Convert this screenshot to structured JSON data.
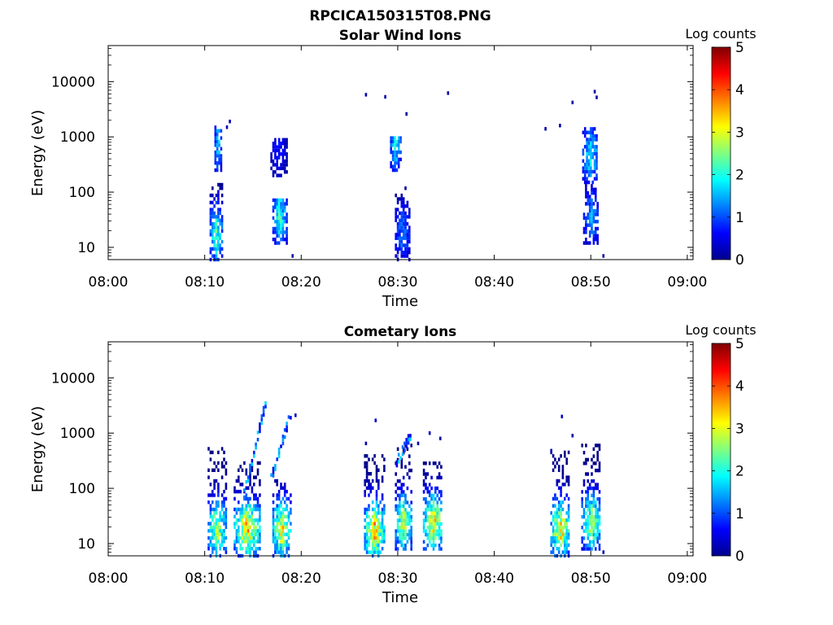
{
  "figure_title": "RPCICA150315T08.PNG",
  "chart_data": [
    {
      "type": "heatmap",
      "title": "Solar Wind Ions",
      "xlabel": "Time",
      "ylabel": "Energy (eV)",
      "x_ticks": [
        "08:00",
        "08:10",
        "08:20",
        "08:30",
        "08:40",
        "08:50",
        "09:00"
      ],
      "xlim_minutes": [
        0,
        60.6
      ],
      "y_ticks": [
        10,
        100,
        1000,
        10000
      ],
      "y_tick_labels": [
        "10",
        "100",
        "1000",
        "10000"
      ],
      "y_scale": "log",
      "ylim": [
        6,
        45000
      ],
      "colorbar": {
        "label": "Log counts",
        "min": 0,
        "max": 5,
        "ticks": [
          "0",
          "1",
          "2",
          "3",
          "4",
          "5"
        ],
        "colormap": "jet"
      },
      "clusters": [
        {
          "t": 11.1,
          "w": 1.2,
          "emin": 6,
          "emax": 150,
          "peak": 2.6
        },
        {
          "t": 11.3,
          "w": 0.6,
          "emin": 250,
          "emax": 1500,
          "peak": 2.2
        },
        {
          "t": 17.7,
          "w": 1.4,
          "emin": 12,
          "emax": 80,
          "peak": 2.4
        },
        {
          "t": 17.6,
          "w": 1.6,
          "emin": 200,
          "emax": 900,
          "peak": 0.8
        },
        {
          "t": 30.4,
          "w": 1.4,
          "emin": 6,
          "emax": 120,
          "peak": 1.5
        },
        {
          "t": 29.7,
          "w": 1.0,
          "emin": 250,
          "emax": 1000,
          "peak": 2.2
        },
        {
          "t": 50.0,
          "w": 1.6,
          "emin": 12,
          "emax": 150,
          "peak": 1.6
        },
        {
          "t": 49.9,
          "w": 1.6,
          "emin": 150,
          "emax": 1500,
          "peak": 2.2
        }
      ],
      "isolated_points": [
        {
          "t": 12.5,
          "e": 1900,
          "v": 0.3
        },
        {
          "t": 12.2,
          "e": 1500,
          "v": 0.3
        },
        {
          "t": 19.0,
          "e": 7,
          "v": 0.2
        },
        {
          "t": 26.6,
          "e": 5800,
          "v": 0.2
        },
        {
          "t": 28.6,
          "e": 5300,
          "v": 0.2
        },
        {
          "t": 30.8,
          "e": 2600,
          "v": 0.2
        },
        {
          "t": 35.1,
          "e": 6200,
          "v": 0.2
        },
        {
          "t": 45.2,
          "e": 1400,
          "v": 0.2
        },
        {
          "t": 46.7,
          "e": 1600,
          "v": 0.2
        },
        {
          "t": 48.0,
          "e": 4200,
          "v": 0.2
        },
        {
          "t": 50.3,
          "e": 6600,
          "v": 0.2
        },
        {
          "t": 50.5,
          "e": 5200,
          "v": 0.2
        },
        {
          "t": 51.2,
          "e": 7,
          "v": 0.2
        }
      ]
    },
    {
      "type": "heatmap",
      "title": "Cometary Ions",
      "xlabel": "Time",
      "ylabel": "Energy (eV)",
      "x_ticks": [
        "08:00",
        "08:10",
        "08:20",
        "08:30",
        "08:40",
        "08:50",
        "09:00"
      ],
      "xlim_minutes": [
        0,
        60.6
      ],
      "y_ticks": [
        10,
        100,
        1000,
        10000
      ],
      "y_tick_labels": [
        "10",
        "100",
        "1000",
        "10000"
      ],
      "y_scale": "log",
      "ylim": [
        6,
        45000
      ],
      "colorbar": {
        "label": "Log counts",
        "min": 0,
        "max": 5,
        "ticks": [
          "0",
          "1",
          "2",
          "3",
          "4",
          "5"
        ],
        "colormap": "jet"
      },
      "clusters": [
        {
          "t": 11.2,
          "w": 1.8,
          "emin": 6,
          "emax": 600,
          "peak": 3.3
        },
        {
          "t": 14.3,
          "w": 2.6,
          "emin": 6,
          "emax": 300,
          "peak": 3.8
        },
        {
          "t": 17.9,
          "w": 1.8,
          "emin": 6,
          "emax": 150,
          "peak": 3.6
        },
        {
          "t": 27.5,
          "w": 2.0,
          "emin": 6,
          "emax": 400,
          "peak": 3.9
        },
        {
          "t": 30.5,
          "w": 1.6,
          "emin": 8,
          "emax": 600,
          "peak": 3.3
        },
        {
          "t": 33.6,
          "w": 2.0,
          "emin": 8,
          "emax": 300,
          "peak": 3.8
        },
        {
          "t": 46.8,
          "w": 2.0,
          "emin": 6,
          "emax": 500,
          "peak": 3.7
        },
        {
          "t": 50.0,
          "w": 2.0,
          "emin": 8,
          "emax": 600,
          "peak": 3.1
        }
      ],
      "dispersion_streaks": [
        {
          "t0": 14.0,
          "t1": 16.2,
          "e0": 80,
          "e1": 3500
        },
        {
          "t0": 16.8,
          "t1": 18.8,
          "e0": 150,
          "e1": 2200
        },
        {
          "t0": 29.8,
          "t1": 31.2,
          "e0": 300,
          "e1": 900
        }
      ],
      "isolated_points": [
        {
          "t": 26.6,
          "e": 650,
          "v": 0.2
        },
        {
          "t": 27.6,
          "e": 1700,
          "v": 0.3
        },
        {
          "t": 32.0,
          "e": 650,
          "v": 0.2
        },
        {
          "t": 33.2,
          "e": 1000,
          "v": 0.3
        },
        {
          "t": 34.3,
          "e": 800,
          "v": 0.2
        },
        {
          "t": 45.8,
          "e": 480,
          "v": 0.2
        },
        {
          "t": 46.9,
          "e": 2000,
          "v": 0.3
        },
        {
          "t": 48.0,
          "e": 900,
          "v": 0.2
        },
        {
          "t": 51.2,
          "e": 7,
          "v": 0.2
        },
        {
          "t": 19.3,
          "e": 2100,
          "v": 0.3
        }
      ]
    }
  ]
}
